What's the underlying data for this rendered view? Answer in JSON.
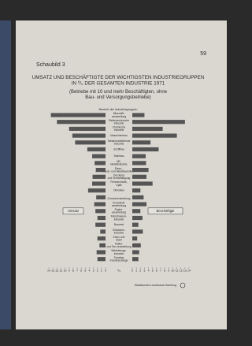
{
  "page_number": "59",
  "label": "Schaubild 3",
  "chart_data": {
    "type": "butterfly",
    "title": "UMSATZ UND BESCHÄFTIGTE DER WICHTIGSTEN INDUSTRIEGRUPPEN IN ⁰/₀ DER GESAMTEN INDUSTRIE 1971",
    "subtitle": "(Betriebe mit 10 und mehr Beschäftigten, ohne Bau- und Versorgungsbetriebe)",
    "category_header": "Bereich der Industriegruppen",
    "categories": [
      "Mineralöl-verarbeitung",
      "Elektrotechnische Industrie",
      "Chemische Industrie",
      "Maschinenbau",
      "Tabakverarbeitende Industrie",
      "Schiffbau",
      "Stahlbau",
      "NE-Metallindustrie",
      "Eisen-, Blech- und Metallwarenind.",
      "Druckerei und Vervielfältigung",
      "Feinmechanik, Optik",
      "Ölmühlen",
      "Gummiverarbeitung",
      "Kunststoff-verarbeitung",
      "Papier-verarbeitung",
      "Fleischwaren-industrie",
      "Brauerei",
      "Süßwaren-industrie",
      "Eisen und Stahl",
      "Kaffee- und Tee-verarbeitung",
      "Bekleidungs-industrie",
      "Sonstige Industriezweige"
    ],
    "series": [
      {
        "name": "Umsatz",
        "color": "#555555",
        "side": "left",
        "values": [
          13.5,
          12,
          9,
          8.2,
          7.5,
          4.5,
          3.3,
          2.7,
          2.4,
          3.2,
          3.3,
          4.3,
          2.3,
          2.8,
          2.5,
          2.0,
          2.5,
          1.3,
          2.0,
          1.5,
          2.2,
          2.0
        ]
      },
      {
        "name": "Beschäftigte",
        "color": "#555555",
        "side": "right",
        "values": [
          3,
          13,
          7.5,
          11,
          4.5,
          6.5,
          3.3,
          3.4,
          4.0,
          3.5,
          5.0,
          2.0,
          2.8,
          3.5,
          2.0,
          2.5,
          1.5,
          2.6,
          1.2,
          2.1,
          1.7,
          1.5
        ]
      }
    ],
    "xlim": [
      0,
      14
    ],
    "xticks": [
      0,
      1,
      2,
      3,
      4,
      5,
      6,
      7,
      8,
      9,
      10,
      11,
      12,
      13,
      14
    ],
    "unit_label": "⁰/₀"
  },
  "footer": "Statistisches Landesamt Hamburg"
}
